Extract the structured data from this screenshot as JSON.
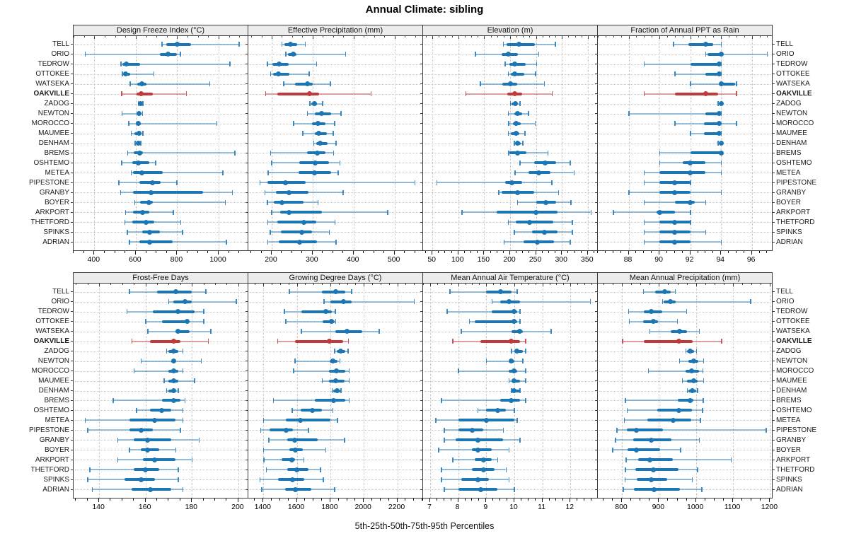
{
  "title": "Annual Climate: sibling",
  "caption": "5th-25th-50th-75th-95th Percentiles",
  "highlight_site": "OAKVILLE",
  "colors": {
    "blue": "#1d76b4",
    "red": "#c03a3a",
    "grid": "#c9c9c9",
    "strip_bg": "#ececec",
    "border": "#3a3a3a"
  },
  "sites": [
    "TELL",
    "ORIO",
    "TEDROW",
    "OTTOKEE",
    "WATSEKA",
    "OAKVILLE",
    "ZADOG",
    "NEWTON",
    "MOROCCO",
    "MAUMEE",
    "DENHAM",
    "BREMS",
    "OSHTEMO",
    "METEA",
    "PIPESTONE",
    "GRANBY",
    "BOYER",
    "ARKPORT",
    "THETFORD",
    "SPINKS",
    "ADRIAN"
  ],
  "percentiles_order": [
    "p5",
    "p25",
    "p50",
    "p75",
    "p95"
  ],
  "chart_data": [
    {
      "type": "dot-interval",
      "title": "Design Freeze Index (°C)",
      "row": 0,
      "xlim": [
        300,
        1140
      ],
      "ticks": [
        400,
        600,
        800,
        1000
      ],
      "grid": true,
      "values": [
        [
          726,
          749,
          800,
          867,
          1098
        ],
        [
          355,
          715,
          755,
          800,
          815
        ],
        [
          528,
          536,
          555,
          620,
          1053
        ],
        [
          535,
          540,
          552,
          572,
          687
        ],
        [
          572,
          606,
          630,
          653,
          957
        ],
        [
          532,
          603,
          627,
          681,
          843
        ],
        [
          611,
          617,
          623,
          629,
          634
        ],
        [
          533,
          605,
          617,
          627,
          632
        ],
        [
          566,
          599,
          614,
          625,
          991
        ],
        [
          578,
          595,
          616,
          628,
          634
        ],
        [
          597,
          603,
          611,
          617,
          624
        ],
        [
          560,
          590,
          620,
          633,
          1078
        ],
        [
          532,
          583,
          612,
          667,
          695
        ],
        [
          578,
          588,
          631,
          732,
          1020
        ],
        [
          518,
          616,
          682,
          721,
          798
        ],
        [
          527,
          586,
          673,
          924,
          1065
        ],
        [
          595,
          620,
          665,
          682,
          1031
        ],
        [
          550,
          588,
          634,
          665,
          781
        ],
        [
          546,
          584,
          651,
          690,
          817
        ],
        [
          558,
          631,
          667,
          715,
          825
        ],
        [
          569,
          617,
          668,
          778,
          1037
        ]
      ]
    },
    {
      "type": "dot-interval",
      "title": "Effective Precipitation (mm)",
      "row": 0,
      "xlim": [
        143,
        568
      ],
      "ticks": [
        200,
        300,
        400,
        500
      ],
      "grid": true,
      "values": [
        [
          225,
          231,
          246,
          263,
          282
        ],
        [
          234,
          240,
          253,
          261,
          380
        ],
        [
          189,
          202,
          218,
          242,
          309
        ],
        [
          197,
          204,
          216,
          243,
          291
        ],
        [
          229,
          257,
          287,
          300,
          343
        ],
        [
          185,
          213,
          293,
          316,
          442
        ],
        [
          293,
          297,
          305,
          311,
          324
        ],
        [
          287,
          306,
          322,
          346,
          369
        ],
        [
          253,
          299,
          313,
          331,
          353
        ],
        [
          276,
          305,
          315,
          334,
          350
        ],
        [
          302,
          309,
          318,
          337,
          357
        ],
        [
          197,
          286,
          311,
          331,
          351
        ],
        [
          200,
          267,
          306,
          340,
          366
        ],
        [
          191,
          266,
          305,
          345,
          362
        ],
        [
          171,
          190,
          233,
          283,
          549
        ],
        [
          183,
          210,
          243,
          290,
          374
        ],
        [
          189,
          206,
          225,
          277,
          313
        ],
        [
          200,
          220,
          243,
          322,
          483
        ],
        [
          190,
          214,
          279,
          309,
          354
        ],
        [
          196,
          223,
          273,
          299,
          340
        ],
        [
          190,
          217,
          269,
          311,
          357
        ]
      ]
    },
    {
      "type": "dot-interval",
      "title": "Elevation (m)",
      "row": 0,
      "xlim": [
        32,
        368
      ],
      "ticks": [
        50,
        100,
        150,
        200,
        250,
        300,
        350
      ],
      "grid": true,
      "values": [
        [
          187,
          193,
          217,
          248,
          287
        ],
        [
          133,
          183,
          197,
          215,
          255
        ],
        [
          190,
          199,
          209,
          230,
          251
        ],
        [
          196,
          201,
          209,
          228,
          249
        ],
        [
          142,
          185,
          200,
          213,
          266
        ],
        [
          114,
          194,
          209,
          223,
          281
        ],
        [
          200,
          203,
          210,
          214,
          219
        ],
        [
          196,
          208,
          214,
          223,
          235
        ],
        [
          197,
          205,
          212,
          221,
          248
        ],
        [
          196,
          202,
          211,
          218,
          228
        ],
        [
          208,
          210,
          215,
          221,
          224
        ],
        [
          197,
          199,
          215,
          232,
          273
        ],
        [
          219,
          246,
          268,
          289,
          316
        ],
        [
          209,
          235,
          255,
          278,
          323
        ],
        [
          58,
          190,
          203,
          223,
          280
        ],
        [
          178,
          183,
          215,
          247,
          293
        ],
        [
          214,
          250,
          269,
          289,
          317
        ],
        [
          107,
          174,
          250,
          291,
          356
        ],
        [
          196,
          211,
          237,
          283,
          320
        ],
        [
          208,
          242,
          266,
          292,
          320
        ],
        [
          188,
          226,
          253,
          285,
          316
        ]
      ]
    },
    {
      "type": "dot-interval",
      "title": "Fraction of Annual PPT as Rain",
      "row": 0,
      "xlim": [
        86,
        97.3
      ],
      "ticks": [
        88,
        90,
        92,
        94,
        96
      ],
      "grid": true,
      "values": [
        [
          90.9,
          91.9,
          93.0,
          93.5,
          94.0
        ],
        [
          93.0,
          93.1,
          94.0,
          94.0,
          97.0
        ],
        [
          89.0,
          92.0,
          93.9,
          94.0,
          94.0
        ],
        [
          91.0,
          93.0,
          93.9,
          94.0,
          94.0
        ],
        [
          92.0,
          93.9,
          94.0,
          94.9,
          95.0
        ],
        [
          89.0,
          91.0,
          93.0,
          93.8,
          95.0
        ],
        [
          93.8,
          93.9,
          94.0,
          94.0,
          94.0
        ],
        [
          88.0,
          93.0,
          93.9,
          94.0,
          94.0
        ],
        [
          91.0,
          92.9,
          93.9,
          94.0,
          95.0
        ],
        [
          92.0,
          92.9,
          93.9,
          94.0,
          94.0
        ],
        [
          93.8,
          93.9,
          94.0,
          94.0,
          94.0
        ],
        [
          90.0,
          92.0,
          94.0,
          94.0,
          94.0
        ],
        [
          90.0,
          91.5,
          92.0,
          93.0,
          94.0
        ],
        [
          89.0,
          90.0,
          92.0,
          93.0,
          94.0
        ],
        [
          89.0,
          90.0,
          91.0,
          92.0,
          92.0
        ],
        [
          88.0,
          90.0,
          91.0,
          92.0,
          94.0
        ],
        [
          89.0,
          91.0,
          92.0,
          92.3,
          93.0
        ],
        [
          87.0,
          89.8,
          90.0,
          91.0,
          92.0
        ],
        [
          89.0,
          90.0,
          91.0,
          92.0,
          92.0
        ],
        [
          89.0,
          90.0,
          91.0,
          92.0,
          93.0
        ],
        [
          89.0,
          90.0,
          91.0,
          92.0,
          94.0
        ]
      ]
    },
    {
      "type": "dot-interval",
      "title": "Frost-Free Days",
      "row": 1,
      "xlim": [
        129,
        204
      ],
      "ticks": [
        140,
        160,
        180,
        200
      ],
      "grid": true,
      "values": [
        [
          153,
          165,
          173,
          180,
          186
        ],
        [
          170,
          172,
          177,
          180,
          199
        ],
        [
          152,
          163,
          174,
          181,
          185
        ],
        [
          160,
          167,
          178,
          179,
          185
        ],
        [
          161,
          173,
          174,
          179,
          188
        ],
        [
          154,
          162,
          172,
          175,
          187
        ],
        [
          169,
          170,
          172,
          174,
          176
        ],
        [
          158,
          171,
          172,
          173,
          184
        ],
        [
          155,
          170,
          172,
          174,
          176
        ],
        [
          168,
          170,
          172,
          174,
          181
        ],
        [
          169,
          170,
          172,
          173,
          174
        ],
        [
          146,
          167,
          172,
          175,
          177
        ],
        [
          156,
          162,
          167,
          171,
          176
        ],
        [
          134,
          153,
          164,
          173,
          176
        ],
        [
          135,
          153,
          158,
          163,
          175
        ],
        [
          148,
          155,
          161,
          171,
          183
        ],
        [
          153,
          158,
          161,
          166,
          173
        ],
        [
          148,
          159,
          164,
          173,
          180
        ],
        [
          136,
          155,
          160,
          166,
          174
        ],
        [
          135,
          151,
          158,
          164,
          174
        ],
        [
          137,
          154,
          162,
          171,
          176
        ]
      ]
    },
    {
      "type": "dot-interval",
      "title": "Growing Degree Days (°C)",
      "row": 1,
      "xlim": [
        1310,
        2350
      ],
      "ticks": [
        1400,
        1600,
        1800,
        2000,
        2200
      ],
      "grid": true,
      "values": [
        [
          1554,
          1751,
          1832,
          1891,
          1926
        ],
        [
          1762,
          1800,
          1877,
          1926,
          2301
        ],
        [
          1524,
          1627,
          1772,
          1807,
          1828
        ],
        [
          1533,
          1754,
          1807,
          1824,
          1832
        ],
        [
          1625,
          1828,
          1898,
          1989,
          2090
        ],
        [
          1484,
          1589,
          1793,
          1877,
          1908
        ],
        [
          1824,
          1838,
          1863,
          1891,
          1905
        ],
        [
          1589,
          1796,
          1814,
          1842,
          1856
        ],
        [
          1580,
          1790,
          1838,
          1891,
          1912
        ],
        [
          1751,
          1790,
          1832,
          1884,
          1912
        ],
        [
          1810,
          1818,
          1842,
          1860,
          1863
        ],
        [
          1460,
          1709,
          1821,
          1891,
          1912
        ],
        [
          1571,
          1622,
          1692,
          1751,
          1814
        ],
        [
          1400,
          1533,
          1622,
          1800,
          1842
        ],
        [
          1383,
          1435,
          1536,
          1575,
          1669
        ],
        [
          1431,
          1543,
          1587,
          1726,
          1884
        ],
        [
          1400,
          1554,
          1592,
          1636,
          1772
        ],
        [
          1403,
          1509,
          1571,
          1589,
          1641
        ],
        [
          1417,
          1543,
          1601,
          1669,
          1740
        ],
        [
          1379,
          1488,
          1575,
          1646,
          1758
        ],
        [
          1389,
          1529,
          1592,
          1688,
          1824
        ]
      ]
    },
    {
      "type": "dot-interval",
      "title": "Mean Annual Air Temperature (°C)",
      "row": 1,
      "xlim": [
        6.75,
        12.95
      ],
      "ticks": [
        7,
        8,
        9,
        10,
        11,
        12
      ],
      "grid": true,
      "values": [
        [
          7.7,
          9.0,
          9.5,
          9.9,
          10.1
        ],
        [
          9.2,
          9.5,
          9.8,
          10.2,
          12.7
        ],
        [
          7.6,
          9.2,
          10.0,
          10.1,
          10.2
        ],
        [
          8.4,
          8.6,
          10.0,
          10.1,
          10.2
        ],
        [
          8.1,
          9.9,
          10.2,
          10.3,
          11.3
        ],
        [
          7.8,
          8.8,
          9.9,
          10.2,
          10.4
        ],
        [
          9.9,
          10.0,
          10.1,
          10.3,
          10.4
        ],
        [
          9.0,
          9.8,
          9.9,
          10.0,
          10.3
        ],
        [
          8.0,
          9.8,
          10.0,
          10.1,
          10.4
        ],
        [
          9.8,
          9.9,
          10.0,
          10.2,
          10.4
        ],
        [
          9.9,
          9.9,
          10.0,
          10.2,
          10.2
        ],
        [
          7.4,
          9.5,
          9.9,
          10.2,
          10.4
        ],
        [
          8.7,
          9.0,
          9.4,
          9.7,
          10.0
        ],
        [
          7.2,
          8.0,
          9.0,
          10.0,
          10.1
        ],
        [
          7.5,
          8.0,
          8.5,
          8.9,
          9.6
        ],
        [
          7.5,
          7.9,
          8.7,
          9.6,
          10.2
        ],
        [
          7.3,
          8.5,
          8.7,
          9.2,
          9.8
        ],
        [
          7.8,
          8.6,
          8.9,
          9.2,
          9.4
        ],
        [
          7.4,
          8.5,
          8.9,
          9.3,
          9.7
        ],
        [
          7.4,
          8.1,
          8.7,
          9.1,
          9.8
        ],
        [
          7.5,
          8.0,
          8.8,
          9.4,
          10.0
        ]
      ]
    },
    {
      "type": "dot-interval",
      "title": "Mean Annual Precipitation (mm)",
      "row": 1,
      "xlim": [
        735,
        1205
      ],
      "ticks": [
        800,
        900,
        1000,
        1100,
        1200
      ],
      "grid": true,
      "values": [
        [
          858,
          889,
          916,
          932,
          944
        ],
        [
          909,
          913,
          930,
          946,
          1147
        ],
        [
          818,
          860,
          879,
          909,
          974
        ],
        [
          820,
          858,
          885,
          898,
          949
        ],
        [
          875,
          932,
          955,
          976,
          1009
        ],
        [
          801,
          860,
          953,
          991,
          1069
        ],
        [
          972,
          976,
          984,
          995,
          1001
        ],
        [
          955,
          980,
          993,
          1006,
          1020
        ],
        [
          871,
          972,
          989,
          1009,
          1018
        ],
        [
          963,
          976,
          993,
          1004,
          1020
        ],
        [
          976,
          980,
          991,
          1001,
          1004
        ],
        [
          809,
          950,
          984,
          992,
          1019
        ],
        [
          814,
          895,
          954,
          990,
          1017
        ],
        [
          806,
          868,
          938,
          987,
          1012
        ],
        [
          786,
          813,
          839,
          910,
          1189
        ],
        [
          782,
          830,
          880,
          933,
          1009
        ],
        [
          775,
          816,
          839,
          904,
          958
        ],
        [
          811,
          843,
          875,
          937,
          1095
        ],
        [
          809,
          836,
          885,
          952,
          1004
        ],
        [
          808,
          841,
          880,
          922,
          990
        ],
        [
          803,
          833,
          886,
          957,
          1015
        ]
      ]
    }
  ]
}
